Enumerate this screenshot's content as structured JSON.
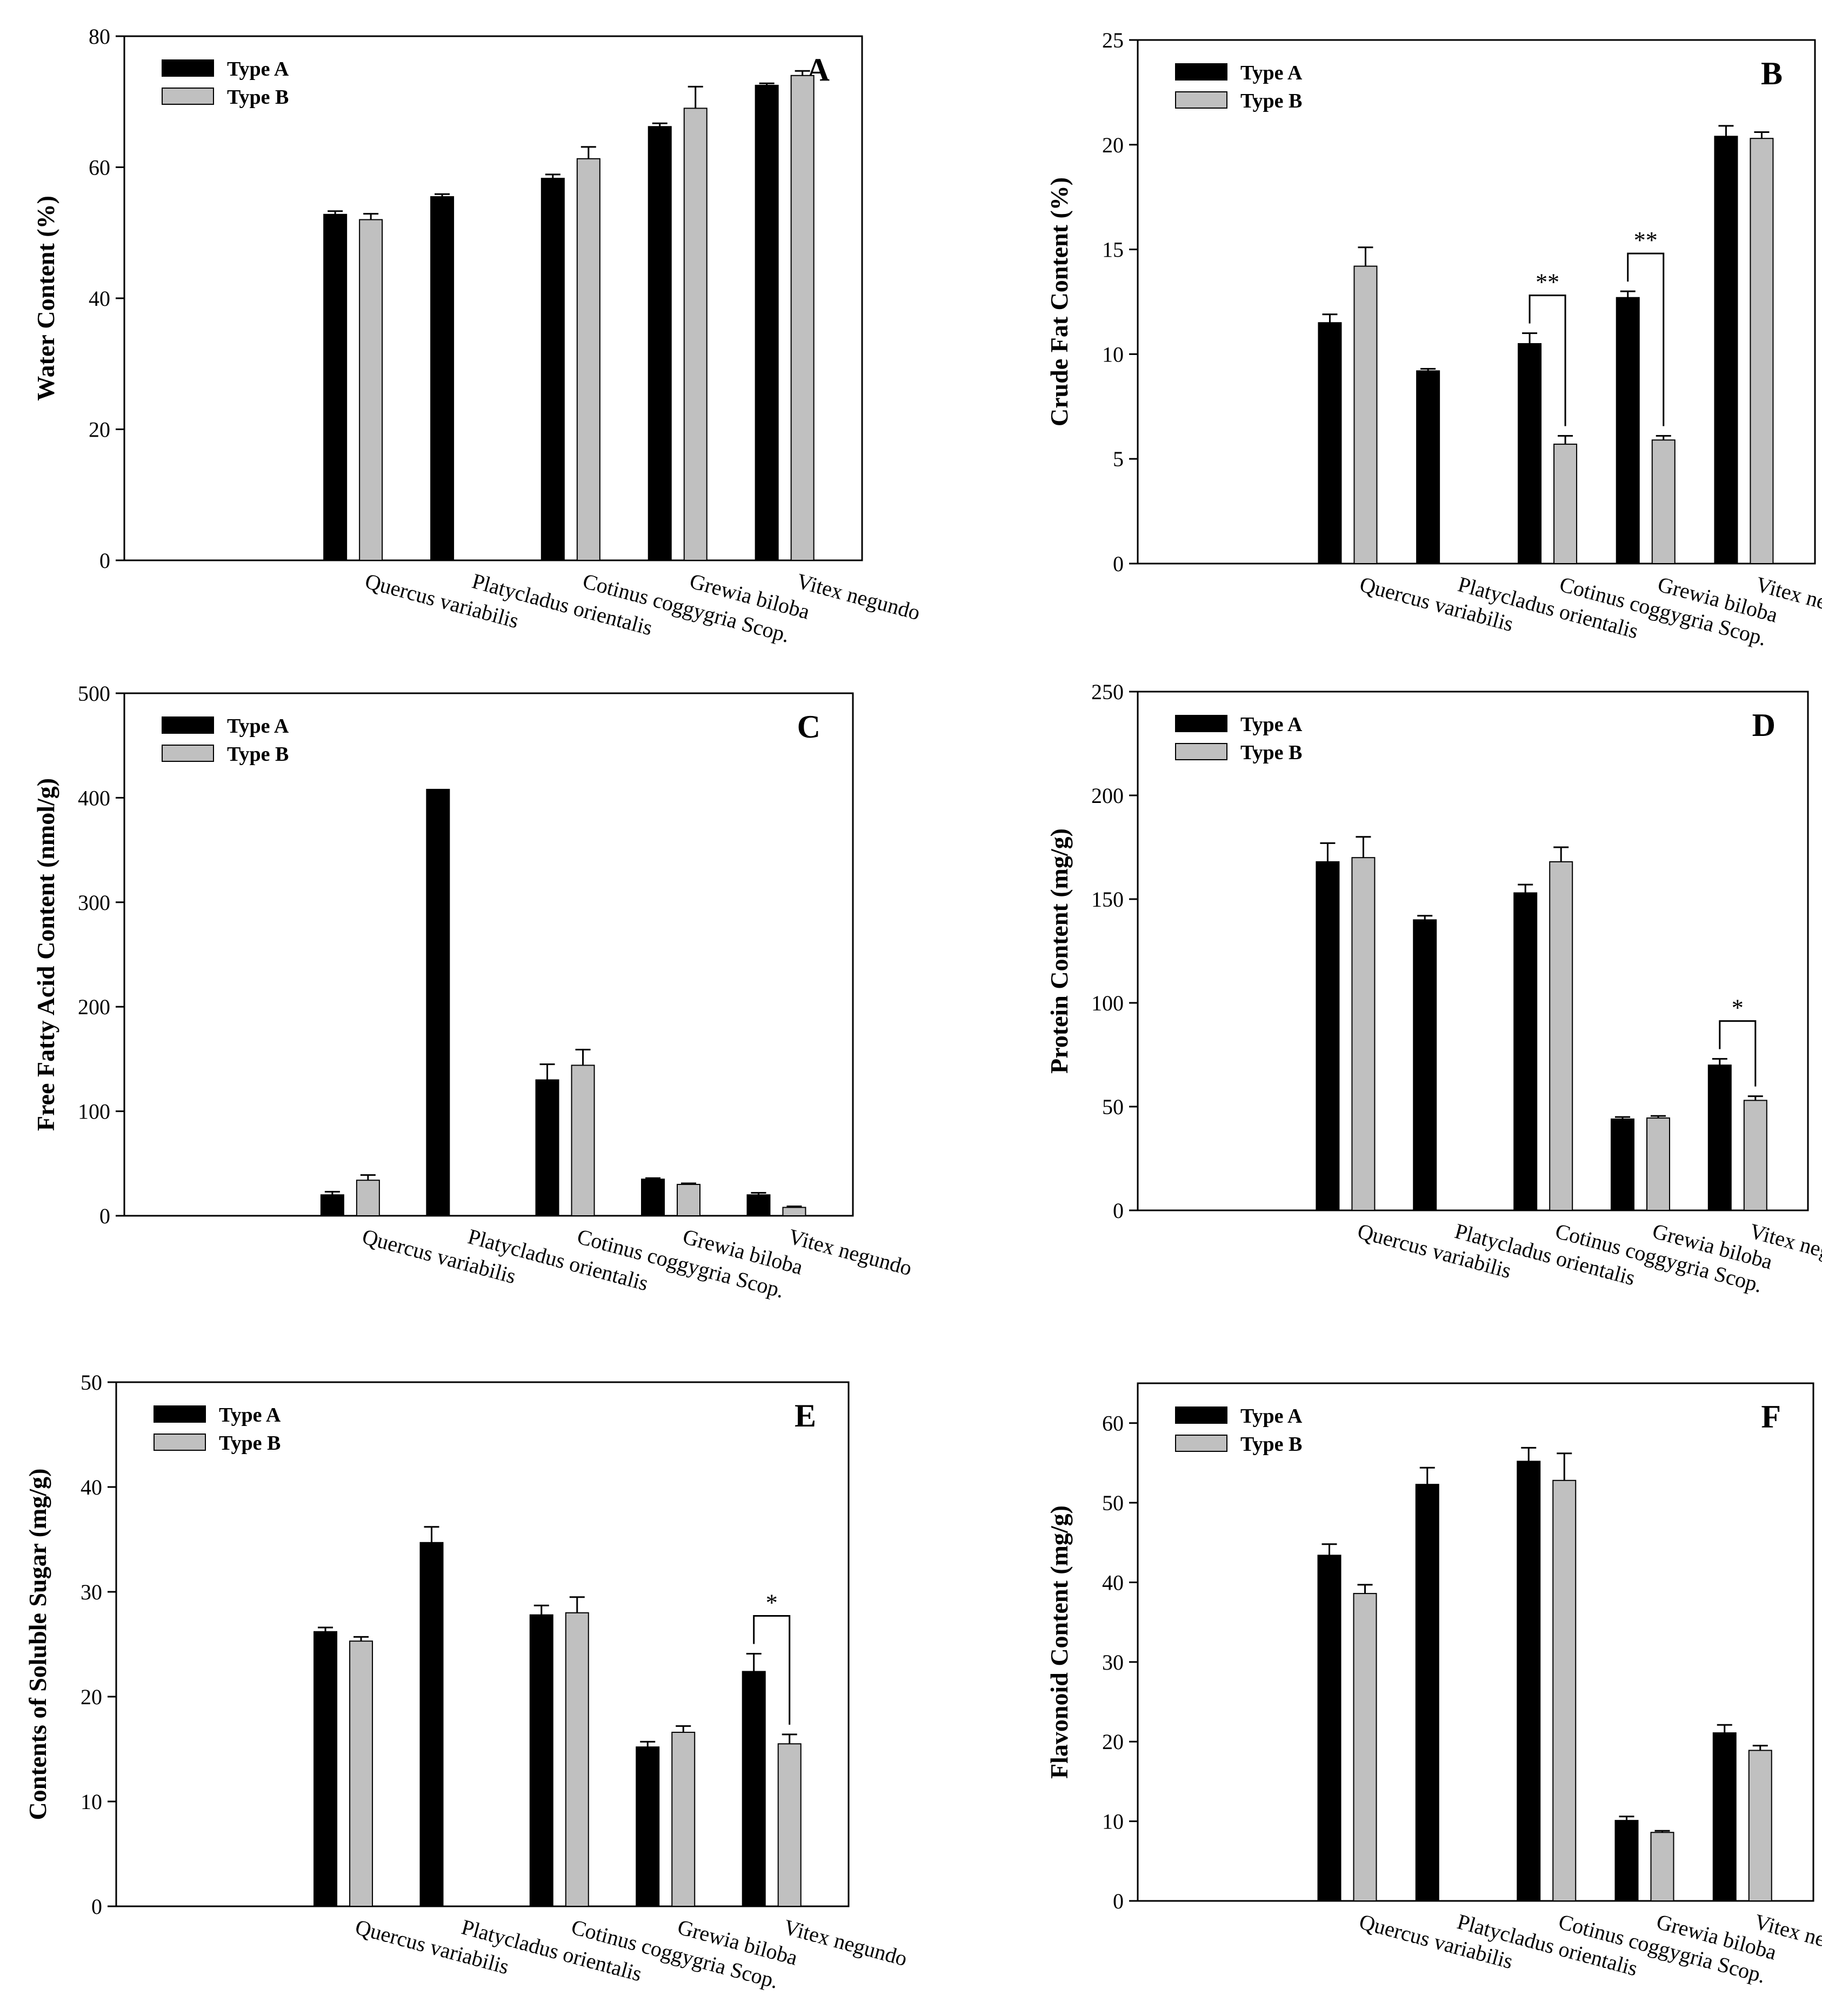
{
  "colors": {
    "type_a": "#000000",
    "type_b": "#c0c0c0",
    "axis": "#000000",
    "background": "#ffffff"
  },
  "legend": {
    "type_a": "Type A",
    "type_b": "Type B"
  },
  "categories": [
    "Quercus variabilis",
    "Platycladus orientalis",
    "Cotinus coggygria Scop.",
    "Grewia biloba",
    "Vitex negundo"
  ],
  "chart_data": [
    {
      "panel": "A",
      "type": "bar",
      "title": "",
      "xlabel": "",
      "ylabel": "Water Content (%)",
      "ylim": [
        0,
        80
      ],
      "yticks": [
        0,
        20,
        40,
        60,
        80
      ],
      "legend_position": "top-left",
      "categories": [
        "Quercus variabilis",
        "Platycladus orientalis",
        "Cotinus coggygria Scop.",
        "Grewia biloba",
        "Vitex negundo"
      ],
      "series": [
        {
          "name": "Type A",
          "values": [
            52.8,
            55.5,
            58.3,
            66.2,
            72.5
          ],
          "errors": [
            0.5,
            0.4,
            0.6,
            0.5,
            0.3
          ]
        },
        {
          "name": "Type B",
          "values": [
            52.0,
            null,
            61.3,
            69.0,
            74.0
          ],
          "errors": [
            0.9,
            null,
            1.8,
            3.3,
            0.7
          ]
        }
      ],
      "significance": []
    },
    {
      "panel": "B",
      "type": "bar",
      "title": "",
      "xlabel": "",
      "ylabel": "Crude Fat Content (%)",
      "ylim": [
        0,
        25
      ],
      "yticks": [
        0,
        5,
        10,
        15,
        20,
        25
      ],
      "legend_position": "top-left",
      "categories": [
        "Quercus variabilis",
        "Platycladus orientalis",
        "Cotinus coggygria Scop.",
        "Grewia biloba",
        "Vitex negundo"
      ],
      "series": [
        {
          "name": "Type A",
          "values": [
            11.5,
            9.2,
            10.5,
            12.7,
            20.4
          ],
          "errors": [
            0.4,
            0.1,
            0.5,
            0.3,
            0.5
          ]
        },
        {
          "name": "Type B",
          "values": [
            14.2,
            null,
            5.7,
            5.9,
            20.3
          ],
          "errors": [
            0.9,
            null,
            0.4,
            0.2,
            0.3
          ]
        }
      ],
      "significance": [
        {
          "category": 2,
          "label": "**"
        },
        {
          "category": 3,
          "label": "**"
        }
      ]
    },
    {
      "panel": "C",
      "type": "bar",
      "title": "",
      "xlabel": "",
      "ylabel": "Free Fatty Acid Content (nmol/g)",
      "ylim": [
        0,
        500
      ],
      "yticks": [
        0,
        100,
        200,
        300,
        400,
        500
      ],
      "legend_position": "top-left",
      "categories": [
        "Quercus variabilis",
        "Platycladus orientalis",
        "Cotinus coggygria Scop.",
        "Grewia biloba",
        "Vitex negundo"
      ],
      "series": [
        {
          "name": "Type A",
          "values": [
            20,
            408,
            130,
            35,
            20
          ],
          "errors": [
            3,
            0,
            15,
            1,
            2
          ]
        },
        {
          "name": "Type B",
          "values": [
            34,
            null,
            144,
            30,
            8
          ],
          "errors": [
            5,
            null,
            15,
            1,
            1
          ]
        }
      ],
      "significance": []
    },
    {
      "panel": "D",
      "type": "bar",
      "title": "",
      "xlabel": "",
      "ylabel": "Protein Content (mg/g)",
      "ylim": [
        0,
        250
      ],
      "yticks": [
        0,
        50,
        100,
        150,
        200,
        250
      ],
      "legend_position": "top-left",
      "categories": [
        "Quercus variabilis",
        "Platycladus orientalis",
        "Cotinus coggygria Scop.",
        "Grewia biloba",
        "Vitex negundo"
      ],
      "series": [
        {
          "name": "Type A",
          "values": [
            168,
            140,
            153,
            44,
            70
          ],
          "errors": [
            9,
            2,
            4,
            1,
            3
          ]
        },
        {
          "name": "Type B",
          "values": [
            170,
            null,
            168,
            44.5,
            53
          ],
          "errors": [
            10,
            null,
            7,
            1,
            2
          ]
        }
      ],
      "significance": [
        {
          "category": 4,
          "label": "*"
        }
      ]
    },
    {
      "panel": "E",
      "type": "bar",
      "title": "",
      "xlabel": "",
      "ylabel": "Contents of Soluble Sugar (mg/g)",
      "ylim": [
        0,
        50
      ],
      "yticks": [
        0,
        10,
        20,
        30,
        40,
        50
      ],
      "legend_position": "top-left",
      "categories": [
        "Quercus variabilis",
        "Platycladus orientalis",
        "Cotinus coggygria Scop.",
        "Grewia biloba",
        "Vitex negundo"
      ],
      "series": [
        {
          "name": "Type A",
          "values": [
            26.2,
            34.7,
            27.8,
            15.2,
            22.4
          ],
          "errors": [
            0.4,
            1.5,
            0.9,
            0.5,
            1.7
          ]
        },
        {
          "name": "Type B",
          "values": [
            25.3,
            null,
            28.0,
            16.6,
            15.5
          ],
          "errors": [
            0.4,
            null,
            1.5,
            0.6,
            0.9
          ]
        }
      ],
      "significance": [
        {
          "category": 4,
          "label": "*"
        }
      ]
    },
    {
      "panel": "F",
      "type": "bar",
      "title": "",
      "xlabel": "",
      "ylabel": "Flavonoid Content (mg/g)",
      "ylim": [
        0,
        65
      ],
      "yticks": [
        0,
        10,
        20,
        30,
        40,
        50,
        60
      ],
      "legend_position": "top-left",
      "categories": [
        "Quercus variabilis",
        "Platycladus orientalis",
        "Cotinus coggygria Scop.",
        "Grewia biloba",
        "Vitex negundo"
      ],
      "series": [
        {
          "name": "Type A",
          "values": [
            43.4,
            52.3,
            55.2,
            10.1,
            21.1
          ],
          "errors": [
            1.4,
            2.1,
            1.7,
            0.5,
            1.0
          ]
        },
        {
          "name": "Type B",
          "values": [
            38.6,
            null,
            52.8,
            8.6,
            18.9
          ],
          "errors": [
            1.1,
            null,
            3.4,
            0.2,
            0.6
          ]
        }
      ],
      "significance": []
    }
  ]
}
